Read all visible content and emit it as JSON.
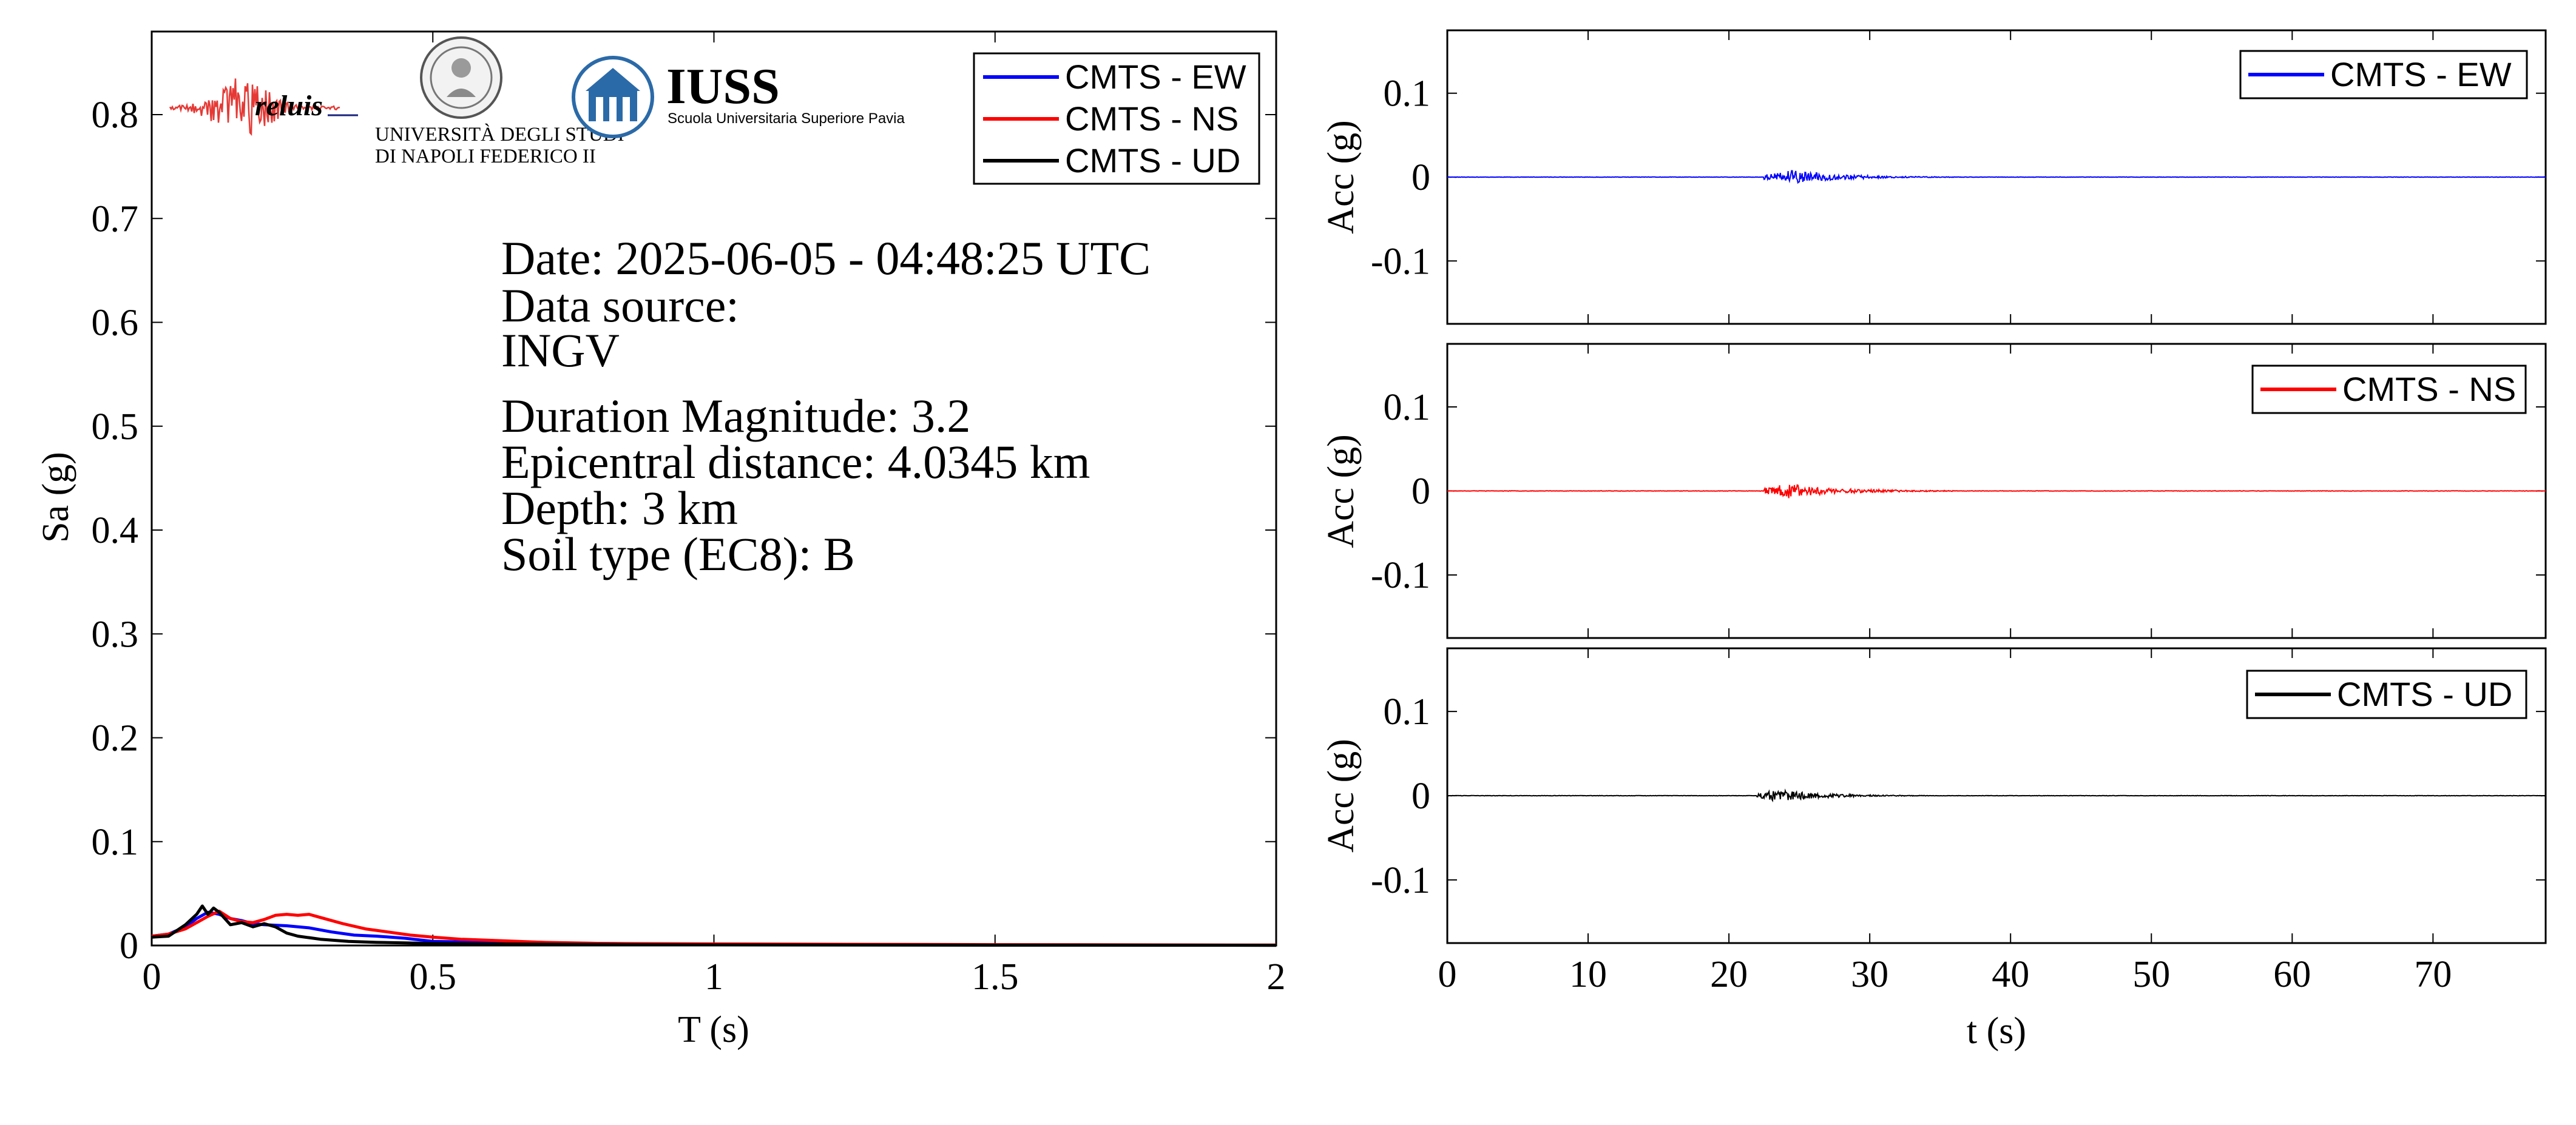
{
  "chart_data": [
    {
      "type": "line",
      "xlabel": "T (s)",
      "ylabel": "Sa (g)",
      "xlim": [
        0,
        2
      ],
      "ylim": [
        0,
        0.88
      ],
      "xticks": [
        0,
        0.5,
        1,
        1.5,
        2
      ],
      "xtick_labels": [
        "0",
        "0.5",
        "1",
        "1.5",
        "2"
      ],
      "yticks": [
        0,
        0.1,
        0.2,
        0.3,
        0.4,
        0.5,
        0.6,
        0.7,
        0.8
      ],
      "ytick_labels": [
        "0",
        "0.1",
        "0.2",
        "0.3",
        "0.4",
        "0.5",
        "0.6",
        "0.7",
        "0.8"
      ],
      "legend_position": "top-right",
      "series": [
        {
          "name": "CMTS - EW",
          "color": "#0000ff",
          "x": [
            0,
            0.03,
            0.06,
            0.08,
            0.1,
            0.12,
            0.14,
            0.16,
            0.18,
            0.2,
            0.24,
            0.28,
            0.32,
            0.36,
            0.4,
            0.45,
            0.5,
            0.6,
            0.8,
            1.0,
            1.5,
            2.0
          ],
          "y": [
            0.009,
            0.011,
            0.018,
            0.026,
            0.032,
            0.03,
            0.026,
            0.024,
            0.021,
            0.02,
            0.019,
            0.017,
            0.013,
            0.01,
            0.009,
            0.007,
            0.004,
            0.003,
            0.002,
            0.001,
            0.0005,
            0.0003
          ]
        },
        {
          "name": "CMTS - NS",
          "color": "#ff0000",
          "x": [
            0,
            0.03,
            0.06,
            0.08,
            0.1,
            0.12,
            0.14,
            0.16,
            0.18,
            0.2,
            0.22,
            0.24,
            0.26,
            0.28,
            0.3,
            0.34,
            0.38,
            0.42,
            0.46,
            0.5,
            0.55,
            0.6,
            0.7,
            0.8,
            1.0,
            1.5,
            2.0
          ],
          "y": [
            0.009,
            0.011,
            0.016,
            0.022,
            0.028,
            0.033,
            0.026,
            0.023,
            0.022,
            0.025,
            0.029,
            0.03,
            0.029,
            0.03,
            0.027,
            0.021,
            0.016,
            0.013,
            0.01,
            0.008,
            0.006,
            0.005,
            0.003,
            0.002,
            0.0015,
            0.0008,
            0.0004
          ]
        },
        {
          "name": "CMTS - UD",
          "color": "#000000",
          "x": [
            0,
            0.03,
            0.06,
            0.08,
            0.09,
            0.1,
            0.11,
            0.12,
            0.13,
            0.14,
            0.16,
            0.18,
            0.2,
            0.22,
            0.24,
            0.26,
            0.3,
            0.35,
            0.4,
            0.5,
            0.6,
            0.8,
            1.0,
            1.5,
            2.0
          ],
          "y": [
            0.008,
            0.009,
            0.02,
            0.03,
            0.038,
            0.03,
            0.036,
            0.032,
            0.026,
            0.02,
            0.022,
            0.018,
            0.021,
            0.018,
            0.012,
            0.009,
            0.006,
            0.004,
            0.003,
            0.002,
            0.0015,
            0.001,
            0.0006,
            0.0003,
            0.0002
          ]
        }
      ]
    },
    {
      "type": "line",
      "ylabel": "Acc (g)",
      "xlim": [
        0,
        78
      ],
      "ylim": [
        -0.175,
        0.175
      ],
      "yticks": [
        0.1,
        0,
        -0.1
      ],
      "ytick_labels": [
        "0.1",
        "0",
        "-0.1"
      ],
      "legend_position": "top-right",
      "series": [
        {
          "name": "CMTS - EW",
          "color": "#0000ff",
          "burst": {
            "start_s": 22.5,
            "peak_s": 24.5,
            "end_s": 36,
            "peak_amp_g": 0.008,
            "seed": 11
          }
        }
      ]
    },
    {
      "type": "line",
      "ylabel": "Acc (g)",
      "xlim": [
        0,
        78
      ],
      "ylim": [
        -0.175,
        0.175
      ],
      "yticks": [
        0.1,
        0,
        -0.1
      ],
      "ytick_labels": [
        "0.1",
        "0",
        "-0.1"
      ],
      "legend_position": "top-right",
      "series": [
        {
          "name": "CMTS - NS",
          "color": "#ff0000",
          "burst": {
            "start_s": 22.5,
            "peak_s": 24.2,
            "end_s": 36,
            "peak_amp_g": 0.009,
            "seed": 23
          }
        }
      ]
    },
    {
      "type": "line",
      "xlabel": "t (s)",
      "ylabel": "Acc (g)",
      "xlim": [
        0,
        78
      ],
      "ylim": [
        -0.175,
        0.175
      ],
      "xticks": [
        0,
        10,
        20,
        30,
        40,
        50,
        60,
        70
      ],
      "xtick_labels": [
        "0",
        "10",
        "20",
        "30",
        "40",
        "50",
        "60",
        "70"
      ],
      "yticks": [
        0.1,
        0,
        -0.1
      ],
      "ytick_labels": [
        "0.1",
        "0",
        "-0.1"
      ],
      "legend_position": "top-right",
      "series": [
        {
          "name": "CMTS - UD",
          "color": "#000000",
          "burst": {
            "start_s": 22.0,
            "peak_s": 23.5,
            "end_s": 34,
            "peak_amp_g": 0.007,
            "seed": 37
          }
        }
      ]
    }
  ],
  "annotation": {
    "date_line": "Date: 2025-06-05 - 04:48:25 UTC",
    "source_label": "Data source:",
    "source_value": "INGV",
    "magnitude": "Duration Magnitude: 3.2",
    "distance": "Epicentral distance: 4.0345 km",
    "depth": "Depth: 3 km",
    "soil": "Soil type (EC8): B"
  },
  "logos": {
    "reluis": "reluis",
    "unina_line1": "UNIVERSITÀ DEGLI STUDI",
    "unina_line2": "DI NAPOLI FEDERICO II",
    "iuss_title": "IUSS",
    "iuss_subtitle": "Scuola Universitaria Superiore Pavia",
    "reluis_color": "#1a237e",
    "trace_color": "#e53935",
    "iuss_color": "#2b6aa8"
  }
}
